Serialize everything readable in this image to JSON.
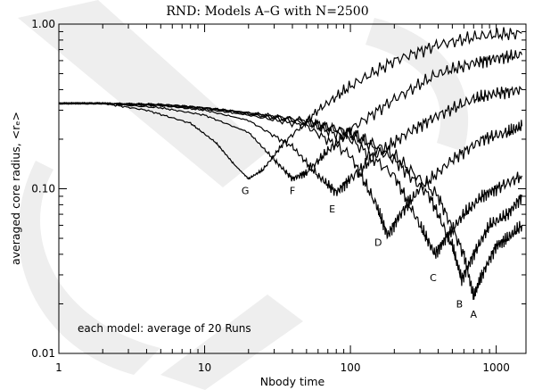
{
  "chart_data": {
    "type": "line",
    "title": "RND: Models A–G with N=2500",
    "xlabel": "Nbody time",
    "ylabel": "averaged core radius, <rₑ>",
    "xscale": "log",
    "yscale": "log",
    "xlim": [
      1,
      1600
    ],
    "ylim": [
      0.01,
      1.0
    ],
    "xticks": [
      {
        "value": 1,
        "label": "1"
      },
      {
        "value": 10,
        "label": "10"
      },
      {
        "value": 100,
        "label": "100"
      },
      {
        "value": 1000,
        "label": "1000"
      }
    ],
    "yticks": [
      {
        "value": 0.01,
        "label": "0.01"
      },
      {
        "value": 0.1,
        "label": "0.10"
      },
      {
        "value": 1.0,
        "label": "1.00"
      }
    ],
    "annotation": "each model: average of 20 Runs",
    "series": [
      {
        "name": "A",
        "label_at": [
          700,
          0.0165
        ],
        "points": [
          [
            1,
            0.33
          ],
          [
            2,
            0.33
          ],
          [
            5,
            0.325
          ],
          [
            10,
            0.31
          ],
          [
            20,
            0.29
          ],
          [
            50,
            0.26
          ],
          [
            100,
            0.22
          ],
          [
            200,
            0.16
          ],
          [
            400,
            0.09
          ],
          [
            600,
            0.04
          ],
          [
            700,
            0.022
          ],
          [
            800,
            0.03
          ],
          [
            1000,
            0.045
          ],
          [
            1200,
            0.05
          ],
          [
            1500,
            0.06
          ]
        ]
      },
      {
        "name": "B",
        "label_at": [
          560,
          0.019
        ],
        "points": [
          [
            1,
            0.33
          ],
          [
            2,
            0.33
          ],
          [
            5,
            0.325
          ],
          [
            10,
            0.31
          ],
          [
            20,
            0.29
          ],
          [
            50,
            0.255
          ],
          [
            100,
            0.215
          ],
          [
            200,
            0.15
          ],
          [
            350,
            0.09
          ],
          [
            500,
            0.045
          ],
          [
            580,
            0.028
          ],
          [
            700,
            0.04
          ],
          [
            900,
            0.06
          ],
          [
            1200,
            0.07
          ],
          [
            1500,
            0.09
          ]
        ]
      },
      {
        "name": "C",
        "label_at": [
          370,
          0.0275
        ],
        "points": [
          [
            1,
            0.33
          ],
          [
            2,
            0.33
          ],
          [
            5,
            0.325
          ],
          [
            10,
            0.31
          ],
          [
            20,
            0.285
          ],
          [
            50,
            0.25
          ],
          [
            100,
            0.2
          ],
          [
            200,
            0.12
          ],
          [
            300,
            0.06
          ],
          [
            380,
            0.04
          ],
          [
            450,
            0.05
          ],
          [
            600,
            0.07
          ],
          [
            800,
            0.09
          ],
          [
            1000,
            0.1
          ],
          [
            1500,
            0.12
          ]
        ]
      },
      {
        "name": "D",
        "label_at": [
          155,
          0.045
        ],
        "points": [
          [
            1,
            0.33
          ],
          [
            2,
            0.33
          ],
          [
            5,
            0.32
          ],
          [
            10,
            0.305
          ],
          [
            20,
            0.28
          ],
          [
            50,
            0.24
          ],
          [
            100,
            0.16
          ],
          [
            150,
            0.08
          ],
          [
            180,
            0.052
          ],
          [
            220,
            0.07
          ],
          [
            300,
            0.1
          ],
          [
            500,
            0.15
          ],
          [
            800,
            0.2
          ],
          [
            1200,
            0.22
          ],
          [
            1500,
            0.24
          ]
        ]
      },
      {
        "name": "E",
        "label_at": [
          75,
          0.072
        ],
        "points": [
          [
            1,
            0.33
          ],
          [
            2,
            0.33
          ],
          [
            5,
            0.32
          ],
          [
            10,
            0.3
          ],
          [
            20,
            0.26
          ],
          [
            40,
            0.18
          ],
          [
            60,
            0.12
          ],
          [
            80,
            0.095
          ],
          [
            100,
            0.115
          ],
          [
            150,
            0.16
          ],
          [
            250,
            0.22
          ],
          [
            400,
            0.28
          ],
          [
            700,
            0.35
          ],
          [
            1000,
            0.38
          ],
          [
            1500,
            0.4
          ]
        ]
      },
      {
        "name": "F",
        "label_at": [
          40,
          0.093
        ],
        "points": [
          [
            1,
            0.33
          ],
          [
            2,
            0.33
          ],
          [
            5,
            0.31
          ],
          [
            10,
            0.28
          ],
          [
            20,
            0.22
          ],
          [
            30,
            0.15
          ],
          [
            40,
            0.115
          ],
          [
            50,
            0.125
          ],
          [
            70,
            0.17
          ],
          [
            100,
            0.23
          ],
          [
            200,
            0.35
          ],
          [
            400,
            0.5
          ],
          [
            700,
            0.58
          ],
          [
            1000,
            0.62
          ],
          [
            1500,
            0.65
          ]
        ]
      },
      {
        "name": "G",
        "label_at": [
          19,
          0.093
        ],
        "points": [
          [
            1,
            0.33
          ],
          [
            2,
            0.33
          ],
          [
            4,
            0.3
          ],
          [
            8,
            0.25
          ],
          [
            12,
            0.19
          ],
          [
            16,
            0.14
          ],
          [
            20,
            0.115
          ],
          [
            25,
            0.13
          ],
          [
            35,
            0.19
          ],
          [
            60,
            0.3
          ],
          [
            100,
            0.42
          ],
          [
            200,
            0.6
          ],
          [
            400,
            0.75
          ],
          [
            800,
            0.85
          ],
          [
            1500,
            0.88
          ]
        ]
      }
    ]
  },
  "watermark": "DRAFT"
}
